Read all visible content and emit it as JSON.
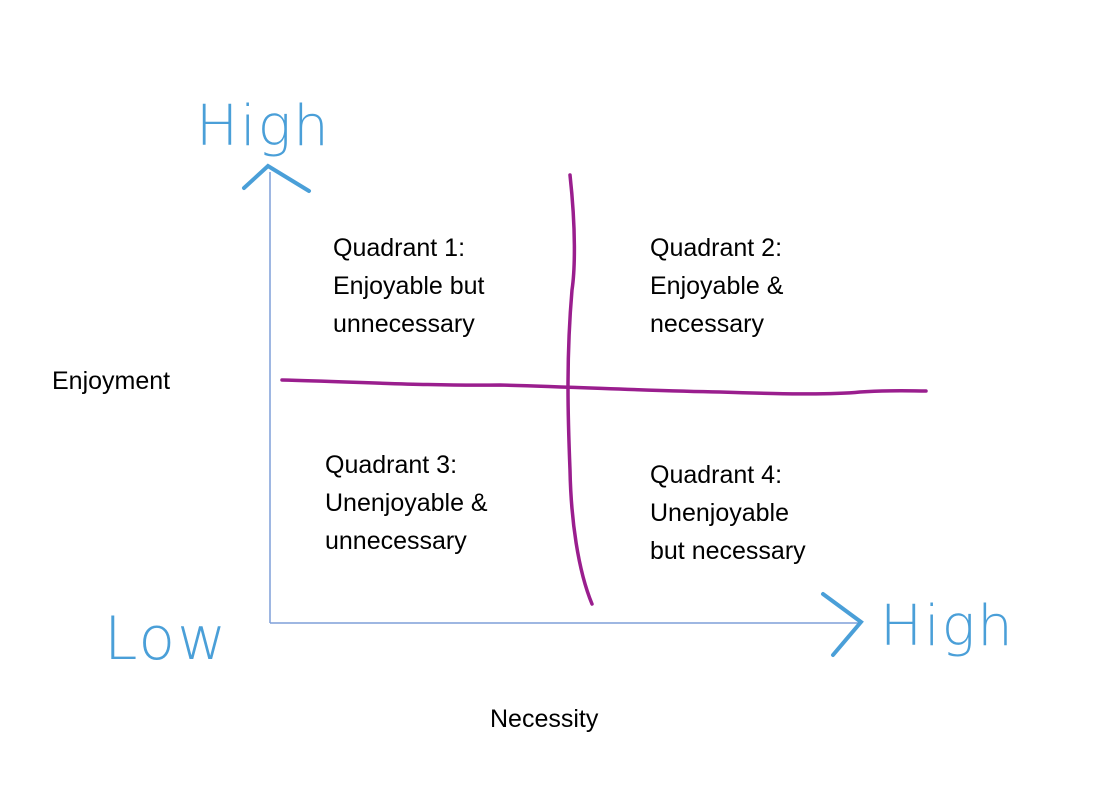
{
  "colors": {
    "hand": "#4a9fd8",
    "divider": "#9a1e8e",
    "axis": "#7f9fd9",
    "text": "#000000"
  },
  "axes": {
    "y_label": "Enjoyment",
    "x_label": "Necessity",
    "y_high": "High",
    "x_high": "High",
    "origin_low": "Low"
  },
  "quadrants": [
    {
      "title": "Quadrant 1:",
      "lines": [
        "Enjoyable but",
        "unnecessary"
      ]
    },
    {
      "title": "Quadrant 2:",
      "lines": [
        "Enjoyable &",
        "necessary"
      ]
    },
    {
      "title": "Quadrant 3:",
      "lines": [
        "Unenjoyable &",
        "unnecessary"
      ]
    },
    {
      "title": "Quadrant 4:",
      "lines": [
        "Unenjoyable",
        "but necessary"
      ]
    }
  ]
}
